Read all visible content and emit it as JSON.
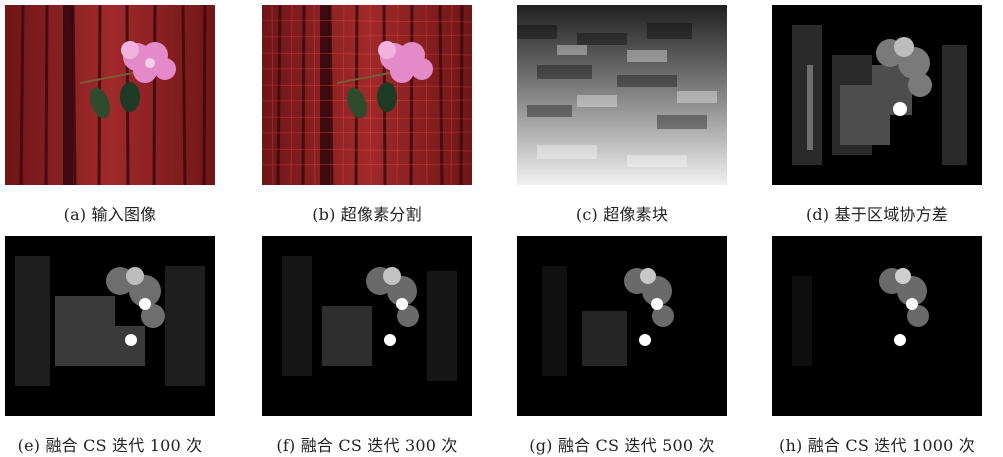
{
  "figure": {
    "panels": [
      {
        "caption": "(a) 输入图像"
      },
      {
        "caption": "(b) 超像素分割"
      },
      {
        "caption": "(c) 超像素块"
      },
      {
        "caption": "(d) 基于区域协方差"
      },
      {
        "caption": "(e) 融合 CS 迭代 100 次"
      },
      {
        "caption": "(f) 融合 CS 迭代 300 次"
      },
      {
        "caption": "(g) 融合 CS 迭代 500 次"
      },
      {
        "caption": "(h) 融合 CS 迭代 1000 次"
      }
    ]
  },
  "colors": {
    "wall_red": "#8c1f22",
    "wall_dark": "#4a0f12",
    "flower_pink": "#e58ac9",
    "leaf_green": "#2f4b2c",
    "background": "#000000"
  }
}
